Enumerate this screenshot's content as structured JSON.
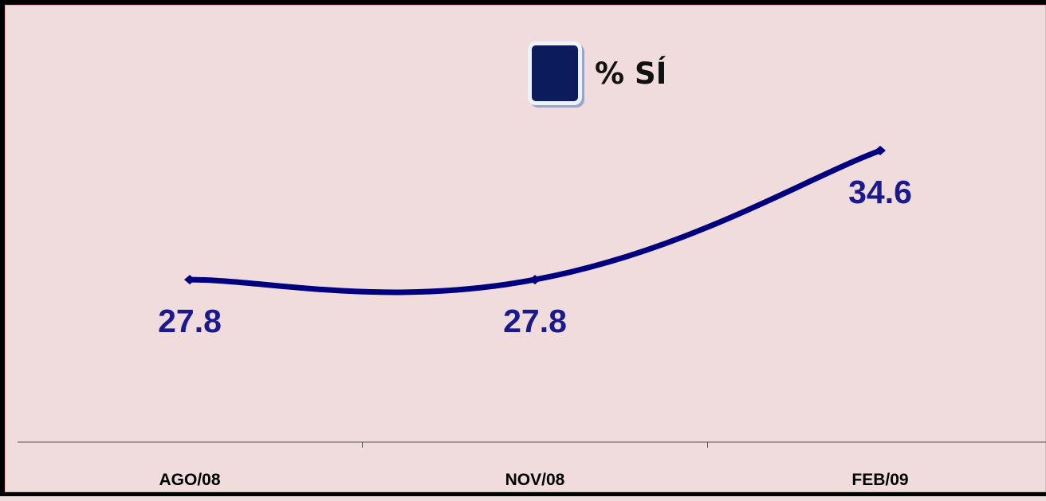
{
  "chart_data": {
    "type": "line",
    "categories": [
      "AGO/08",
      "NOV/08",
      "FEB/09"
    ],
    "series": [
      {
        "name": "% SÍ",
        "values": [
          27.8,
          27.8,
          34.6
        ],
        "color": "#00007f"
      }
    ],
    "data_labels": [
      "27.8",
      "27.8",
      "34.6"
    ],
    "legend": {
      "position": "top-center",
      "swatch_color": "#0b1b5c"
    },
    "ylim": [
      20,
      38
    ],
    "grid": false,
    "xlabel": "",
    "ylabel": "",
    "background_color": "#f0dcdc",
    "axis_color": "#555555",
    "label_color": "#1a1a8c"
  }
}
